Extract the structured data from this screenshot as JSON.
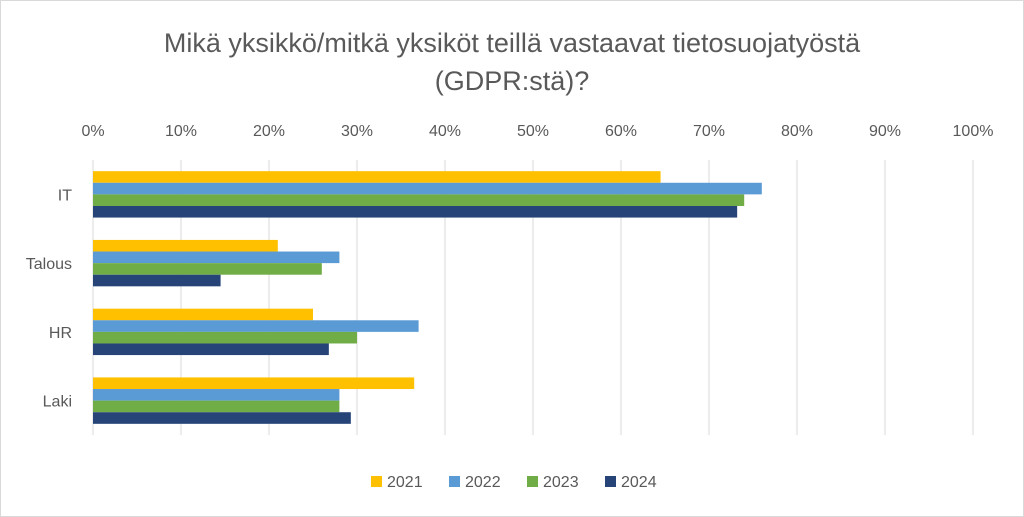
{
  "chart_data": {
    "type": "bar",
    "orientation": "horizontal",
    "title_line1": "Mikä yksikkö/mitkä yksiköt teillä vastaavat tietosuojatyöstä",
    "title_line2": "(GDPR:stä)?",
    "categories": [
      "IT",
      "Talous",
      "HR",
      "Laki"
    ],
    "x_ticks": [
      "0%",
      "10%",
      "20%",
      "30%",
      "40%",
      "50%",
      "60%",
      "70%",
      "80%",
      "90%",
      "100%"
    ],
    "xlim": [
      0,
      100
    ],
    "grid": true,
    "legend_position": "bottom",
    "series": [
      {
        "name": "2021",
        "color": "#FFC000",
        "values": [
          64.5,
          21,
          25,
          36.5
        ]
      },
      {
        "name": "2022",
        "color": "#5B9BD5",
        "values": [
          76,
          28,
          37,
          28
        ]
      },
      {
        "name": "2023",
        "color": "#70AD47",
        "values": [
          74,
          26,
          30,
          28
        ]
      },
      {
        "name": "2024",
        "color": "#264478",
        "values": [
          73.2,
          14.5,
          26.8,
          29.3
        ]
      }
    ]
  }
}
